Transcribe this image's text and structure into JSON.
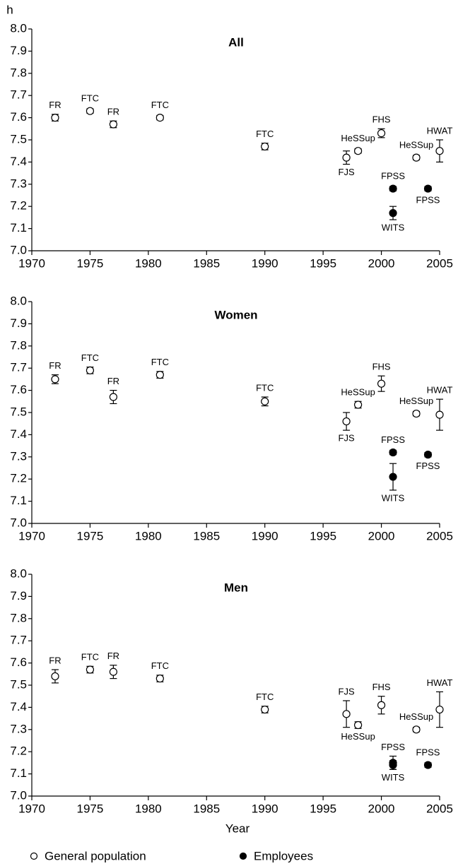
{
  "legend": [
    {
      "name": "General population",
      "color": "#ffffff"
    },
    {
      "name": "Employees",
      "color": "#000000"
    }
  ],
  "chart_data": [
    {
      "type": "scatter",
      "title": "All",
      "y_label": "h",
      "xlim": [
        1970,
        2005
      ],
      "xticks": [
        1970,
        1975,
        1980,
        1985,
        1990,
        1995,
        2000,
        2005
      ],
      "ylim": [
        7,
        8
      ],
      "yticks": [
        {
          "value": 7,
          "label": "7.0"
        },
        7.1,
        7.2,
        7.3,
        7.4,
        7.5,
        7.6,
        7.7,
        7.8,
        7.9,
        {
          "value": 8,
          "label": "8.0"
        }
      ],
      "series": [
        {
          "x": [
            1972,
            1975,
            1977,
            1981,
            1990,
            1997,
            1998,
            2000,
            2003,
            2005
          ],
          "values": [
            7.6,
            7.63,
            7.57,
            7.6,
            7.47,
            7.42,
            7.45,
            7.53,
            7.42,
            7.45
          ],
          "errors": [
            0.015,
            0.01,
            0.015,
            0.01,
            0.015,
            0.03,
            0.01,
            0.02,
            0.01,
            0.05
          ],
          "labels": [
            "FR",
            "FTC",
            "FR",
            "FTC",
            "FTC",
            "FJS",
            "HeSSup",
            "FHS",
            "HeSSup",
            "HWAT"
          ]
        },
        {
          "x": [
            2001,
            2001,
            2004
          ],
          "values": [
            7.28,
            7.17,
            7.28
          ],
          "errors": [
            0.01,
            0.03,
            0.01
          ],
          "labels": [
            "FPSS",
            "WITS",
            "FPSS"
          ]
        }
      ]
    },
    {
      "type": "scatter",
      "title": "Women",
      "xlim": [
        1970,
        2005
      ],
      "xticks": [
        1970,
        1975,
        1980,
        1985,
        1990,
        1995,
        2000,
        2005
      ],
      "ylim": [
        7,
        8
      ],
      "yticks": [
        {
          "value": 7,
          "label": "7.0"
        },
        7.1,
        7.2,
        7.3,
        7.4,
        7.5,
        7.6,
        7.7,
        7.8,
        7.9,
        {
          "value": 8,
          "label": "8.0"
        }
      ],
      "series": [
        {
          "x": [
            1972,
            1975,
            1977,
            1981,
            1990,
            1997,
            1998,
            2000,
            2003,
            2005
          ],
          "values": [
            7.65,
            7.69,
            7.57,
            7.67,
            7.55,
            7.46,
            7.535,
            7.63,
            7.495,
            7.49
          ],
          "errors": [
            0.02,
            0.015,
            0.03,
            0.015,
            0.02,
            0.04,
            0.015,
            0.035,
            0.01,
            0.07
          ],
          "labels": [
            "FR",
            "FTC",
            "FR",
            "FTC",
            "FTC",
            "FJS",
            "HeSSup",
            "FHS",
            "HeSSup",
            "HWAT"
          ]
        },
        {
          "x": [
            2001,
            2001,
            2004
          ],
          "values": [
            7.32,
            7.21,
            7.31
          ],
          "errors": [
            0.01,
            0.06,
            0.01
          ],
          "labels": [
            "FPSS",
            "WITS",
            "FPSS"
          ]
        }
      ]
    },
    {
      "type": "scatter",
      "title": "Men",
      "x_label": "Year",
      "xlim": [
        1970,
        2005
      ],
      "xticks": [
        1970,
        1975,
        1980,
        1985,
        1990,
        1995,
        2000,
        2005
      ],
      "ylim": [
        7,
        8
      ],
      "yticks": [
        {
          "value": 7,
          "label": "7.0"
        },
        7.1,
        7.2,
        7.3,
        7.4,
        7.5,
        7.6,
        7.7,
        7.8,
        7.9,
        {
          "value": 8,
          "label": "8.0"
        }
      ],
      "series": [
        {
          "x": [
            1972,
            1975,
            1977,
            1981,
            1990,
            1997,
            1998,
            2000,
            2003,
            2005
          ],
          "values": [
            7.54,
            7.57,
            7.56,
            7.53,
            7.39,
            7.37,
            7.32,
            7.41,
            7.3,
            7.39
          ],
          "errors": [
            0.03,
            0.015,
            0.03,
            0.015,
            0.015,
            0.06,
            0.015,
            0.04,
            0.01,
            0.08
          ],
          "labels": [
            "FR",
            "FTC",
            "FR",
            "FTC",
            "FTC",
            "FJS",
            "HeSSup",
            "FHS",
            "HeSSup",
            "HWAT"
          ]
        },
        {
          "x": [
            2001,
            2001,
            2004
          ],
          "values": [
            7.15,
            7.14,
            7.14
          ],
          "errors": [
            0.03,
            0.02,
            0.01
          ],
          "labels": [
            "FPSS",
            "WITS",
            "FPSS"
          ]
        }
      ]
    }
  ]
}
